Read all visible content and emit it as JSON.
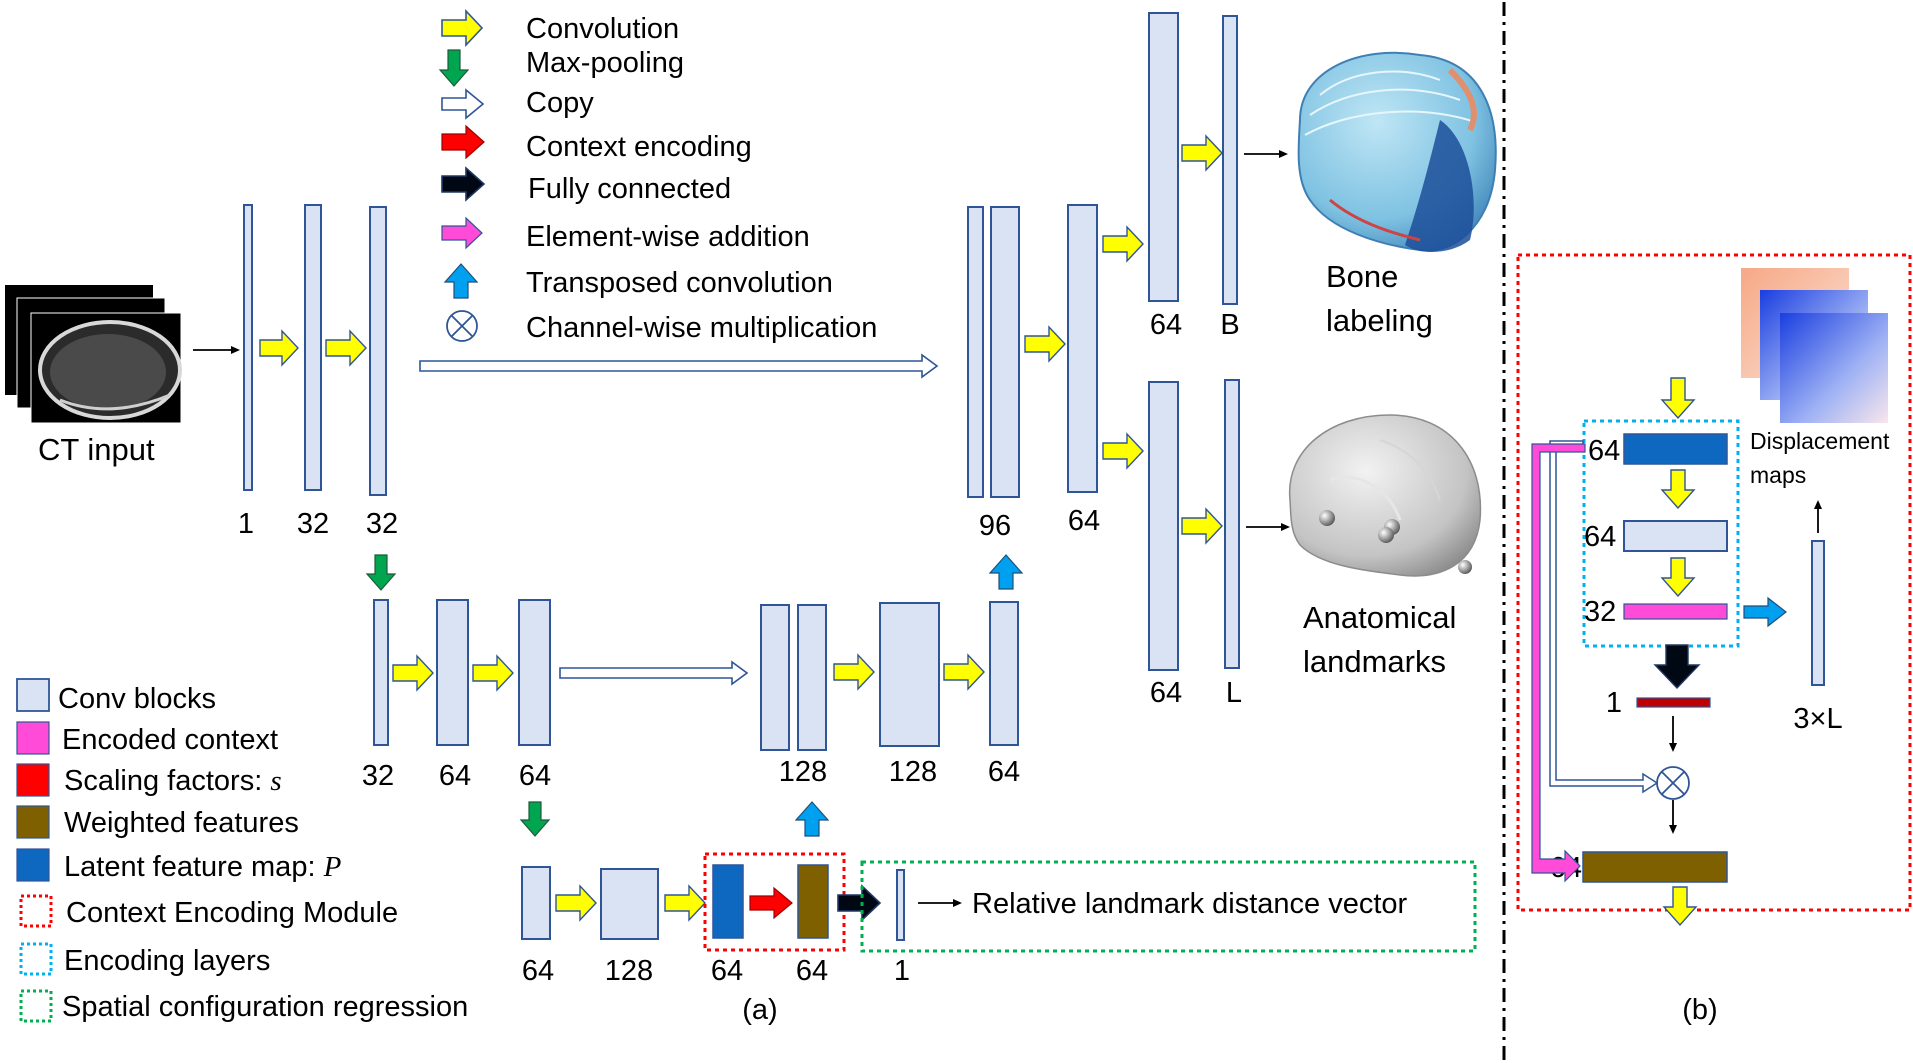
{
  "colors": {
    "conv_block": "#dae3f3",
    "encoded_context": "#ff4bd8",
    "scaling_factors": "#ff0000",
    "weighted_features": "#7f6000",
    "latent_feature_map": "#0f68c0",
    "context_module_outline": "#ff0000",
    "encoding_layers_outline": "#00b0f0",
    "regression_outline": "#00b050",
    "convolution_arrow": "#ffff00",
    "maxpool_arrow": "#00a550",
    "transposed_arrow": "#00a0f0"
  },
  "legend_top": [
    {
      "icon": "convolution-arrow-icon",
      "label": "Convolution"
    },
    {
      "icon": "max-pooling-arrow-icon",
      "label": "Max-pooling"
    },
    {
      "icon": "copy-arrow-icon",
      "label": "Copy"
    },
    {
      "icon": "context-encoding-arrow-icon",
      "label": "Context encoding"
    },
    {
      "icon": "fully-connected-arrow-icon",
      "label": "Fully connected"
    },
    {
      "icon": "element-wise-addition-arrow-icon",
      "label": "Element-wise addition"
    },
    {
      "icon": "transposed-convolution-arrow-icon",
      "label": "Transposed convolution"
    },
    {
      "icon": "channel-wise-multiplication-icon",
      "label": "Channel-wise multiplication"
    }
  ],
  "legend_bottom": [
    {
      "label": "Conv blocks"
    },
    {
      "label": "Encoded context"
    },
    {
      "label": "Scaling factors: ",
      "var": "s"
    },
    {
      "label": "Weighted features"
    },
    {
      "label": "Latent feature map: ",
      "var": "P"
    },
    {
      "label": "Context Encoding Module"
    },
    {
      "label": "Encoding layers"
    },
    {
      "label": "Spatial configuration regression"
    }
  ],
  "labels": {
    "ct_input": "CT input",
    "bone_labeling_1": "Bone",
    "bone_labeling_2": "labeling",
    "anatomical_1": "Anatomical",
    "anatomical_2": "landmarks",
    "relative_distance": "Relative landmark distance vector",
    "caption_a": "(a)",
    "caption_b": "(b)",
    "displacement_1": "Displacement",
    "displacement_2": "maps"
  },
  "channels": {
    "enc1": [
      "1",
      "32",
      "32"
    ],
    "enc2": [
      "32",
      "64",
      "64"
    ],
    "enc3": [
      "64",
      "128",
      "64",
      "64",
      "1"
    ],
    "dec2": [
      "128",
      "128",
      "64"
    ],
    "dec1": [
      "96",
      "64"
    ],
    "bone": [
      "64",
      "B"
    ],
    "landmark": [
      "64",
      "L"
    ],
    "module_b": [
      "64",
      "64",
      "32",
      "1",
      "64",
      "3×L"
    ]
  }
}
